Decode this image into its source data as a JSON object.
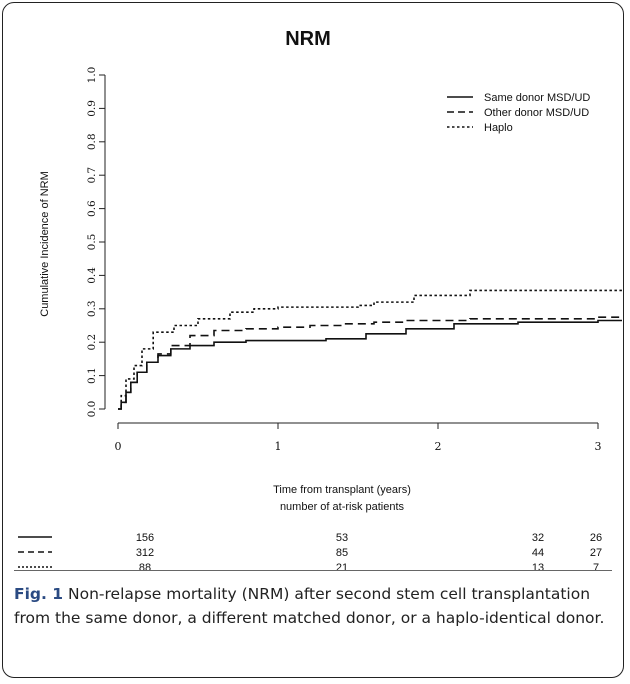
{
  "chart_data": {
    "type": "line",
    "title": "NRM",
    "xlabel": "Time from transplant (years)",
    "ylabel": "Cumulative Incidence of NRM",
    "xlim": [
      0,
      3.15
    ],
    "ylim": [
      0,
      1.0
    ],
    "xticks": [
      "0",
      "1",
      "2",
      "3"
    ],
    "yticks": [
      "0.0",
      "0.1",
      "0.2",
      "0.3",
      "0.4",
      "0.5",
      "0.6",
      "0.7",
      "0.8",
      "0.9",
      "1.0"
    ],
    "legend_position": "top-right",
    "series": [
      {
        "name": "Same donor MSD/UD",
        "line_style": "solid",
        "points": [
          [
            0,
            0
          ],
          [
            0.02,
            0.02
          ],
          [
            0.05,
            0.05
          ],
          [
            0.08,
            0.08
          ],
          [
            0.12,
            0.11
          ],
          [
            0.18,
            0.14
          ],
          [
            0.25,
            0.16
          ],
          [
            0.33,
            0.18
          ],
          [
            0.45,
            0.19
          ],
          [
            0.6,
            0.2
          ],
          [
            0.8,
            0.205
          ],
          [
            1.0,
            0.205
          ],
          [
            1.3,
            0.21
          ],
          [
            1.55,
            0.225
          ],
          [
            1.8,
            0.24
          ],
          [
            2.1,
            0.255
          ],
          [
            2.5,
            0.26
          ],
          [
            3.0,
            0.265
          ],
          [
            3.15,
            0.265
          ]
        ]
      },
      {
        "name": "Other donor MSD/UD",
        "line_style": "dashed",
        "points": [
          [
            0,
            0
          ],
          [
            0.02,
            0.02
          ],
          [
            0.05,
            0.05
          ],
          [
            0.08,
            0.08
          ],
          [
            0.12,
            0.11
          ],
          [
            0.18,
            0.14
          ],
          [
            0.25,
            0.165
          ],
          [
            0.33,
            0.19
          ],
          [
            0.45,
            0.22
          ],
          [
            0.6,
            0.235
          ],
          [
            0.8,
            0.24
          ],
          [
            1.0,
            0.245
          ],
          [
            1.2,
            0.25
          ],
          [
            1.4,
            0.255
          ],
          [
            1.6,
            0.26
          ],
          [
            1.8,
            0.265
          ],
          [
            2.2,
            0.27
          ],
          [
            3.0,
            0.275
          ],
          [
            3.15,
            0.275
          ]
        ]
      },
      {
        "name": "Haplo",
        "line_style": "dotted",
        "points": [
          [
            0,
            0
          ],
          [
            0.02,
            0.04
          ],
          [
            0.05,
            0.09
          ],
          [
            0.1,
            0.13
          ],
          [
            0.15,
            0.18
          ],
          [
            0.22,
            0.23
          ],
          [
            0.35,
            0.25
          ],
          [
            0.5,
            0.27
          ],
          [
            0.7,
            0.29
          ],
          [
            0.85,
            0.3
          ],
          [
            1.0,
            0.305
          ],
          [
            1.5,
            0.31
          ],
          [
            1.6,
            0.32
          ],
          [
            1.85,
            0.34
          ],
          [
            2.2,
            0.355
          ],
          [
            3.15,
            0.355
          ]
        ]
      }
    ],
    "at_risk": {
      "title": "number of at-risk patients",
      "times": [
        "0",
        "1",
        "2",
        "3"
      ],
      "rows": [
        {
          "line_style": "solid",
          "values": [
            "156",
            "53",
            "32",
            "26"
          ]
        },
        {
          "line_style": "dashed",
          "values": [
            "312",
            "85",
            "44",
            "27"
          ]
        },
        {
          "line_style": "dotted",
          "values": [
            "88",
            "21",
            "13",
            "7"
          ]
        }
      ]
    }
  },
  "caption": {
    "label": "Fig. 1",
    "text": " Non-relapse mortality (NRM) after second stem cell transplantation from the same donor, a different matched donor, or a haplo-identical donor."
  }
}
